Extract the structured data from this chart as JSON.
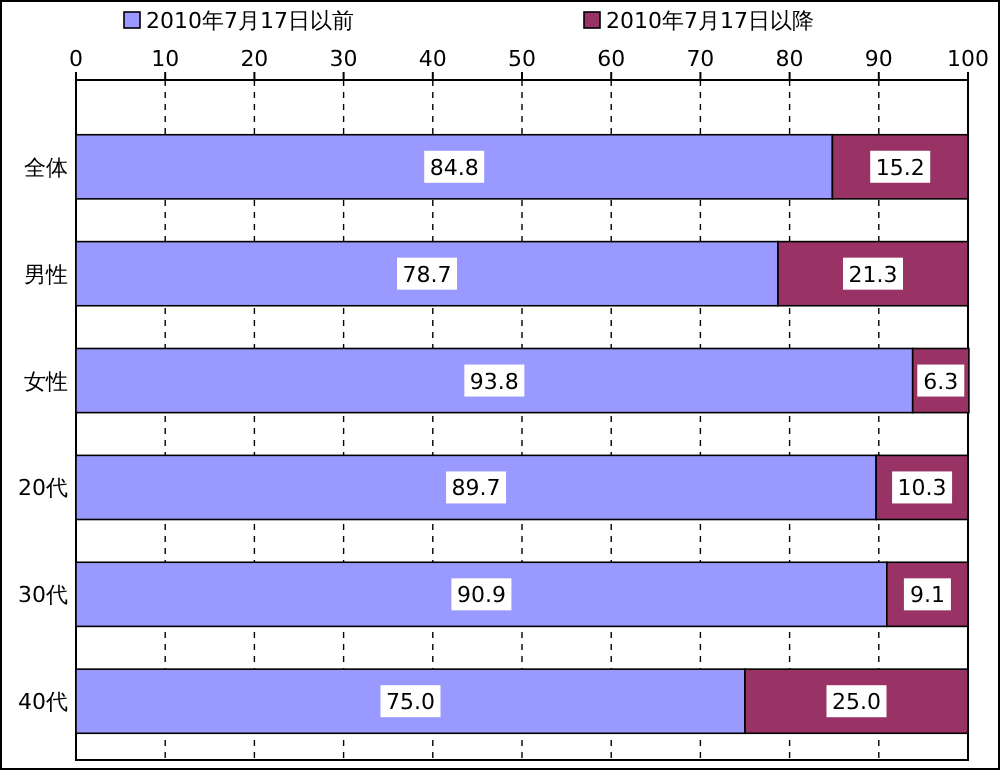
{
  "chart_data": {
    "type": "bar",
    "orientation": "horizontal",
    "stacked": true,
    "categories": [
      "全体",
      "男性",
      "女性",
      "20代",
      "30代",
      "40代"
    ],
    "series": [
      {
        "name": "2010年7月17日以前",
        "color": "#9999ff",
        "values": [
          84.8,
          78.7,
          93.8,
          89.7,
          90.9,
          75.0
        ],
        "value_labels": [
          "84.8",
          "78.7",
          "93.8",
          "89.7",
          "90.9",
          "75.0"
        ]
      },
      {
        "name": "2010年7月17日以降",
        "color": "#993366",
        "values": [
          15.2,
          21.3,
          6.3,
          10.3,
          9.1,
          25.0
        ],
        "value_labels": [
          "15.2",
          "21.3",
          "6.3",
          "10.3",
          "9.1",
          "25.0"
        ]
      }
    ],
    "xlim": [
      0,
      100
    ],
    "xticks": [
      0,
      10,
      20,
      30,
      40,
      50,
      60,
      70,
      80,
      90,
      100
    ],
    "grid": "x",
    "legend": "top"
  }
}
